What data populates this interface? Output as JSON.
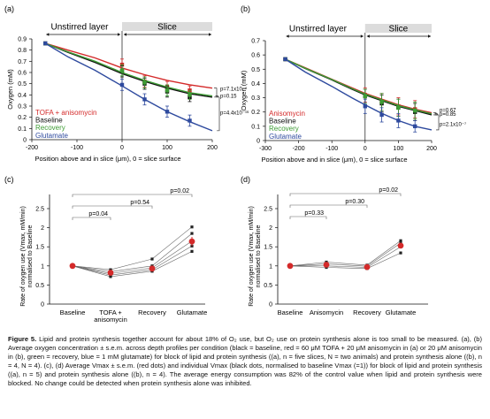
{
  "figure": {
    "caption": {
      "label": "Figure 5.",
      "text": "Lipid and protein synthesis together account for about 18% of O₂ use, but O₂ use on protein synthesis alone is too small to be measured. (a), (b) Average oxygen concentration ± s.e.m. across depth profiles per condition (black = baseline, red = 60 μM TOFA + 20 μM anisomycin in (a) or 20 μM anisomycin in (b), green = recovery, blue = 1 mM glutamate) for block of lipid and protein synthesis ((a), n = five slices, N = two animals) and protein synthesis alone ((b), n = 4, N = 4). (c), (d) Average Vmax ± s.e.m. (red dots) and individual Vmax (black dots, normalised to baseline Vmax (=1)) for block of lipid and protein synthesis ((a), n = 5) and protein synthesis alone ((b), n = 4). The average energy consumption was 82% of the control value when lipid and protein synthesis were blocked. No change could be detected when protein synthesis alone was inhibited."
    }
  },
  "chart_data": [
    {
      "panel": "(a)",
      "type": "line",
      "xlabel": "Position above and in slice (μm), 0 = slice surface",
      "ylabel": "Oxygen (mM)",
      "xlim": [
        -200,
        200
      ],
      "ylim": [
        0,
        0.9
      ],
      "xticks": [
        -200,
        -100,
        0,
        100,
        200
      ],
      "yticks": [
        0,
        0.1,
        0.2,
        0.3,
        0.4,
        0.5,
        0.6,
        0.7,
        0.8,
        0.9
      ],
      "region_labels": [
        "Unstirred layer",
        "Slice"
      ],
      "legend_position": "bottom-left",
      "series": [
        {
          "name": "TOFA + anisomycin",
          "color": "#d42a2a",
          "curve": {
            "x": [
              -170,
              -120,
              -60,
              0,
              50,
              100,
              150,
              200
            ],
            "y": [
              0.86,
              0.8,
              0.73,
              0.64,
              0.58,
              0.53,
              0.49,
              0.46
            ]
          },
          "points": {
            "x": [
              -170,
              0,
              50,
              100,
              150
            ],
            "y": [
              0.86,
              0.67,
              0.52,
              0.47,
              0.44
            ]
          },
          "error": [
            0.01,
            0.05,
            0.05,
            0.05,
            0.04
          ]
        },
        {
          "name": "Baseline",
          "color": "#111111",
          "curve": {
            "x": [
              -170,
              -120,
              -60,
              0,
              50,
              100,
              150,
              200
            ],
            "y": [
              0.86,
              0.78,
              0.69,
              0.59,
              0.52,
              0.46,
              0.41,
              0.38
            ]
          },
          "points": {
            "x": [
              -170,
              0,
              50,
              100,
              150
            ],
            "y": [
              0.86,
              0.61,
              0.5,
              0.43,
              0.38
            ]
          },
          "error": [
            0.01,
            0.05,
            0.05,
            0.05,
            0.04
          ]
        },
        {
          "name": "Recovery",
          "color": "#3e9c35",
          "curve": {
            "x": [
              -170,
              -120,
              -60,
              0,
              50,
              100,
              150,
              200
            ],
            "y": [
              0.86,
              0.785,
              0.7,
              0.6,
              0.53,
              0.47,
              0.42,
              0.39
            ]
          },
          "points": {
            "x": [
              -170,
              0,
              50,
              100,
              150
            ],
            "y": [
              0.86,
              0.62,
              0.51,
              0.44,
              0.4
            ]
          },
          "error": [
            0.01,
            0.05,
            0.05,
            0.05,
            0.04
          ]
        },
        {
          "name": "Glutamate",
          "color": "#2e4a9e",
          "curve": {
            "x": [
              -170,
              -120,
              -60,
              0,
              50,
              100,
              150,
              200
            ],
            "y": [
              0.86,
              0.74,
              0.62,
              0.48,
              0.36,
              0.25,
              0.16,
              0.08
            ]
          },
          "points": {
            "x": [
              -170,
              0,
              50,
              100,
              150
            ],
            "y": [
              0.86,
              0.49,
              0.36,
              0.25,
              0.17
            ]
          },
          "error": [
            0.01,
            0.05,
            0.05,
            0.05,
            0.05
          ]
        }
      ],
      "annotations": [
        {
          "text": "p=7.1x10⁻⁵",
          "y": 0.455
        },
        {
          "text": "p=0.15",
          "y": 0.39
        },
        {
          "text": "p=4.4x10⁻¹⁶",
          "y": 0.24
        }
      ]
    },
    {
      "panel": "(b)",
      "type": "line",
      "xlabel": "Position above and in slice (μm), 0 = slice surface",
      "ylabel": "Oxygen (mM)",
      "xlim": [
        -300,
        200
      ],
      "ylim": [
        0,
        0.7
      ],
      "xticks": [
        -300,
        -200,
        -100,
        0,
        100,
        200
      ],
      "yticks": [
        0,
        0.1,
        0.2,
        0.3,
        0.4,
        0.5,
        0.6,
        0.7
      ],
      "region_labels": [
        "Unstirred layer",
        "Slice"
      ],
      "legend_position": "bottom-left",
      "series": [
        {
          "name": "Anisomycin",
          "color": "#d42a2a",
          "curve": {
            "x": [
              -240,
              -180,
              -100,
              -40,
              0,
              50,
              100,
              150,
              200
            ],
            "y": [
              0.57,
              0.51,
              0.43,
              0.37,
              0.33,
              0.29,
              0.25,
              0.22,
              0.195
            ]
          },
          "points": {
            "x": [
              -240,
              0,
              50,
              100,
              150
            ],
            "y": [
              0.57,
              0.32,
              0.27,
              0.24,
              0.22
            ]
          },
          "error": [
            0.01,
            0.05,
            0.06,
            0.06,
            0.06
          ]
        },
        {
          "name": "Baseline",
          "color": "#111111",
          "curve": {
            "x": [
              -240,
              -180,
              -100,
              -40,
              0,
              50,
              100,
              150,
              200
            ],
            "y": [
              0.57,
              0.505,
              0.425,
              0.36,
              0.32,
              0.28,
              0.24,
              0.21,
              0.18
            ]
          },
          "points": {
            "x": [
              -240,
              0,
              50,
              100,
              150
            ],
            "y": [
              0.57,
              0.31,
              0.26,
              0.23,
              0.2
            ]
          },
          "error": [
            0.01,
            0.05,
            0.06,
            0.06,
            0.06
          ]
        },
        {
          "name": "Recovery",
          "color": "#3e9c35",
          "curve": {
            "x": [
              -240,
              -180,
              -100,
              -40,
              0,
              50,
              100,
              150,
              200
            ],
            "y": [
              0.57,
              0.507,
              0.428,
              0.365,
              0.325,
              0.285,
              0.245,
              0.215,
              0.188
            ]
          },
          "points": {
            "x": [
              -240,
              0,
              50,
              100,
              150
            ],
            "y": [
              0.57,
              0.31,
              0.27,
              0.23,
              0.21
            ]
          },
          "error": [
            0.01,
            0.05,
            0.06,
            0.06,
            0.06
          ]
        },
        {
          "name": "Glutamate",
          "color": "#2e4a9e",
          "curve": {
            "x": [
              -240,
              -180,
              -100,
              -40,
              0,
              50,
              100,
              150,
              200
            ],
            "y": [
              0.57,
              0.48,
              0.38,
              0.3,
              0.25,
              0.19,
              0.14,
              0.1,
              0.075
            ]
          },
          "points": {
            "x": [
              -240,
              0,
              50,
              100,
              150
            ],
            "y": [
              0.57,
              0.24,
              0.18,
              0.14,
              0.1
            ]
          },
          "error": [
            0.01,
            0.05,
            0.05,
            0.05,
            0.04
          ]
        }
      ],
      "annotations": [
        {
          "text": "p=0.67",
          "y": 0.215
        },
        {
          "text": "p=0.85",
          "y": 0.185
        },
        {
          "text": "p=2.1x10⁻⁷",
          "y": 0.115
        }
      ]
    },
    {
      "panel": "(c)",
      "type": "scatter",
      "ylabel": "Rate of oxygen use (Vmax, mM/min) normalised to Baseline",
      "categories": [
        "Baseline",
        "TOFA +\nanisomycin",
        "Recovery",
        "Glutamate"
      ],
      "ylim": [
        0,
        2.5
      ],
      "yticks": [
        0,
        0.5,
        1,
        1.5,
        2,
        2.5
      ],
      "individual": [
        [
          1,
          0.72,
          0.86,
          1.38
        ],
        [
          1,
          0.76,
          0.9,
          1.52
        ],
        [
          1,
          0.8,
          0.95,
          1.65
        ],
        [
          1,
          0.85,
          1.0,
          1.85
        ],
        [
          1,
          0.9,
          1.18,
          2.02
        ]
      ],
      "mean": [
        1.0,
        0.82,
        0.93,
        1.64
      ],
      "sem": [
        0.01,
        0.05,
        0.07,
        0.12
      ],
      "significance": [
        {
          "text": "p=0.04",
          "from": 0,
          "to": 1
        },
        {
          "text": "p=0.54",
          "from": 0,
          "to": 2
        },
        {
          "text": "p=0.02",
          "from": 0,
          "to": 3
        }
      ]
    },
    {
      "panel": "(d)",
      "type": "scatter",
      "ylabel": "Rate of oxygen use (Vmax, mM/min) normalised to Baseline",
      "categories": [
        "Baseline",
        "Anisomycin",
        "Recovery",
        "Glutamate"
      ],
      "ylim": [
        0,
        2.5
      ],
      "yticks": [
        0,
        0.5,
        1,
        1.5,
        2,
        2.5
      ],
      "individual": [
        [
          1,
          0.96,
          0.93,
          1.34
        ],
        [
          1,
          1.0,
          0.96,
          1.5
        ],
        [
          1,
          1.05,
          0.99,
          1.6
        ],
        [
          1,
          1.1,
          1.02,
          1.66
        ]
      ],
      "mean": [
        1.0,
        1.03,
        0.97,
        1.53
      ],
      "sem": [
        0.01,
        0.04,
        0.03,
        0.07
      ],
      "significance": [
        {
          "text": "p=0.33",
          "from": 0,
          "to": 1
        },
        {
          "text": "p=0.30",
          "from": 0,
          "to": 2
        },
        {
          "text": "p=0.02",
          "from": 0,
          "to": 3
        }
      ]
    }
  ]
}
